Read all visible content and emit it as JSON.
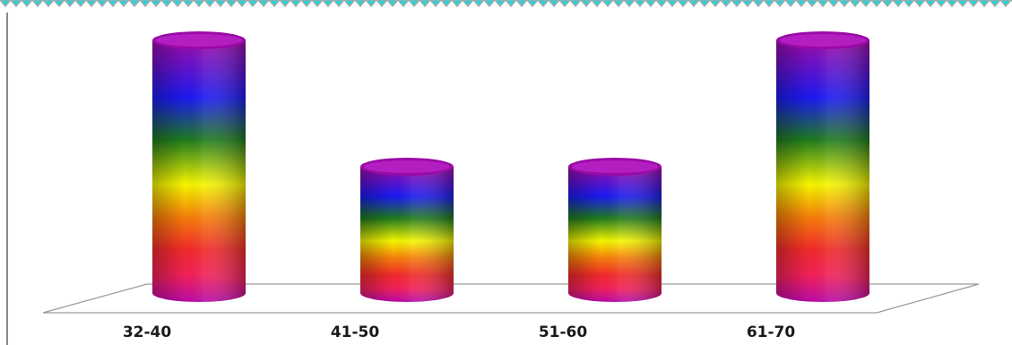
{
  "chart_data": {
    "type": "bar",
    "bar_style": "3d-cylinder",
    "fill": "rainbow-gradient",
    "categories": [
      "32-40",
      "41-50",
      "51-60",
      "61-70"
    ],
    "values": [
      2,
      1,
      1,
      2
    ],
    "ylim": [
      0,
      2
    ],
    "title": "",
    "xlabel": "",
    "ylabel": "",
    "grid": false,
    "legend": "none"
  },
  "colors": {
    "border_zigzag_cyan": "#29d3d8",
    "border_zigzag_gray": "#a8a8a8",
    "axis_line": "#8a8a8a",
    "floor_line": "#9a9a9a",
    "gradient_stops": [
      "#a00aa8",
      "#1a1af0",
      "#1e7a1e",
      "#f5f500",
      "#f57a0a",
      "#f02a2a",
      "#f0205a",
      "#b80aa8"
    ]
  }
}
